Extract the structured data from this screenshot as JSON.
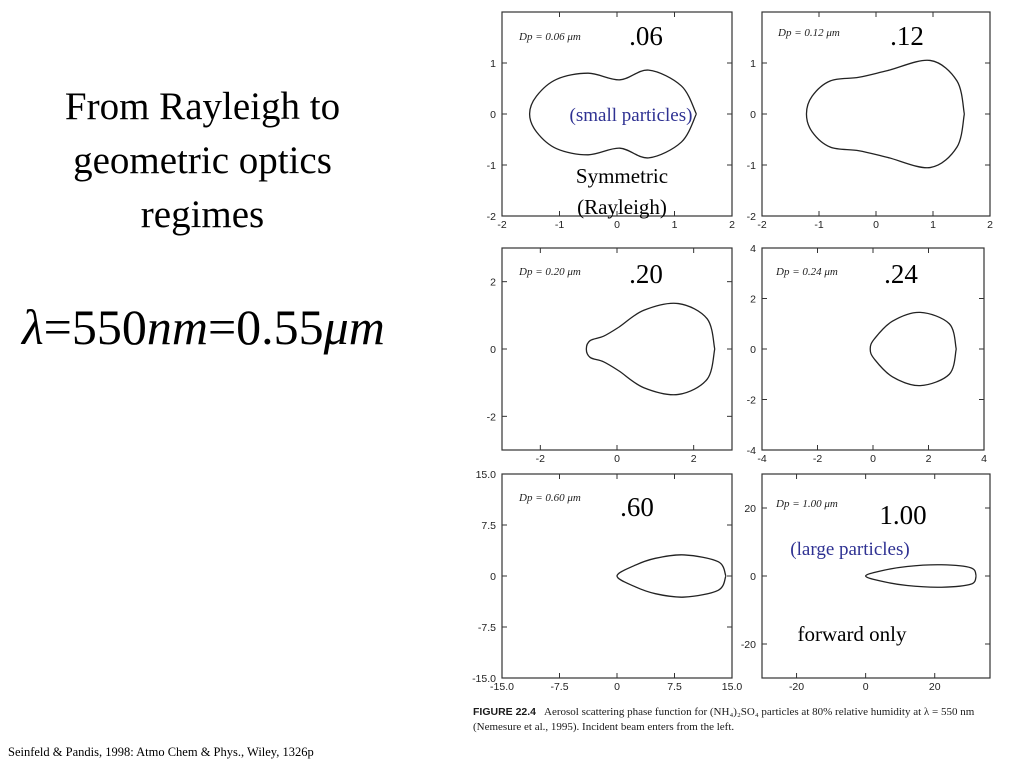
{
  "slide": {
    "title_lines": [
      "From Rayleigh to",
      "geometric optics",
      "regimes"
    ],
    "equation": {
      "lambda": "λ",
      "eq": "=",
      "val1": "550",
      "unit1": "nm",
      "val2": "0.55",
      "mu": "μ",
      "unit2": "m"
    },
    "citation": "Seinfeld & Pandis, 1998: Atmo Chem & Phys., Wiley, 1326p"
  },
  "caption": {
    "figure_label": "FIGURE 22.4",
    "text": "Aerosol scattering phase function for (NH₄)₂SO₄ particles at 80% relative humidity at λ = 550 nm (Nemesure et al., 1995). Incident beam enters from the left."
  },
  "colors": {
    "annotation_blue": "#2e3192",
    "plot_line": "#222222"
  },
  "chart_data": [
    {
      "type": "line",
      "panel_label": "Dp = 0.06 μm",
      "size_label": ".06",
      "annotations": [
        "(small particles)",
        "Symmetric",
        "(Rayleigh)"
      ],
      "xlim": [
        -2,
        2
      ],
      "ylim": [
        -2,
        2
      ],
      "xticks": [
        "-2",
        "-1",
        "0",
        "1",
        "2"
      ],
      "yticks": [
        "-2",
        "-1",
        "0",
        "1"
      ],
      "x": [
        1.38,
        1.12,
        0.55,
        0.05,
        -0.5,
        -1.05,
        -1.4,
        -1.52,
        -1.4,
        -1.05,
        -0.5,
        0.05,
        0.55,
        1.12,
        1.38
      ],
      "y": [
        0,
        0.55,
        0.86,
        0.67,
        0.8,
        0.68,
        0.35,
        0,
        -0.35,
        -0.68,
        -0.8,
        -0.67,
        -0.86,
        -0.55,
        0
      ]
    },
    {
      "type": "line",
      "panel_label": "Dp = 0.12 μm",
      "size_label": ".12",
      "annotations": [],
      "xlim": [
        -2,
        2
      ],
      "ylim": [
        -2,
        2
      ],
      "xticks": [
        "-2",
        "-1",
        "0",
        "1",
        "2"
      ],
      "yticks": [
        "-2",
        "-1",
        "0",
        "1"
      ],
      "x": [
        1.55,
        1.42,
        0.95,
        0.2,
        -0.3,
        -0.8,
        -1.12,
        -1.22,
        -1.12,
        -0.8,
        -0.3,
        0.2,
        0.95,
        1.42,
        1.55
      ],
      "y": [
        0,
        0.65,
        1.05,
        0.85,
        0.72,
        0.65,
        0.35,
        0,
        -0.35,
        -0.65,
        -0.72,
        -0.85,
        -1.05,
        -0.65,
        0
      ]
    },
    {
      "type": "line",
      "panel_label": "Dp = 0.20 μm",
      "size_label": ".20",
      "annotations": [],
      "xlim": [
        -3,
        3
      ],
      "ylim": [
        -3,
        3
      ],
      "xticks": [
        "-2",
        "0",
        "2"
      ],
      "yticks": [
        "-2",
        "0",
        "2"
      ],
      "x": [
        2.55,
        2.35,
        1.6,
        0.7,
        0.05,
        -0.35,
        -0.7,
        -0.8,
        -0.7,
        -0.35,
        0.05,
        0.7,
        1.6,
        2.35,
        2.55
      ],
      "y": [
        0,
        0.9,
        1.35,
        1.15,
        0.65,
        0.38,
        0.25,
        0,
        -0.25,
        -0.38,
        -0.65,
        -1.15,
        -1.35,
        -0.9,
        0
      ]
    },
    {
      "type": "line",
      "panel_label": "Dp = 0.24 μm",
      "size_label": ".24",
      "annotations": [],
      "xlim": [
        -4,
        4
      ],
      "ylim": [
        -4,
        4
      ],
      "xticks": [
        "-4",
        "-2",
        "0",
        "2",
        "4"
      ],
      "yticks": [
        "-4",
        "-2",
        "0",
        "2",
        "4"
      ],
      "x": [
        3.0,
        2.75,
        1.7,
        0.7,
        0.05,
        -0.1,
        0.05,
        0.7,
        1.7,
        2.75,
        3.0
      ],
      "y": [
        0,
        1.0,
        1.45,
        1.1,
        0.4,
        0,
        -0.4,
        -1.1,
        -1.45,
        -1.0,
        0
      ]
    },
    {
      "type": "line",
      "panel_label": "Dp = 0.60 μm",
      "size_label": ".60",
      "annotations": [],
      "xlim": [
        -15,
        15
      ],
      "ylim": [
        -15,
        15
      ],
      "xticks": [
        "-15.0",
        "-7.5",
        "0",
        "7.5",
        "15.0"
      ],
      "yticks": [
        "-15.0",
        "-7.5",
        "0",
        "7.5",
        "15.0"
      ],
      "x": [
        14.2,
        13.2,
        8.8,
        5.0,
        2.2,
        0,
        2.2,
        5.0,
        8.8,
        13.2,
        14.2
      ],
      "y": [
        0,
        2.1,
        3.1,
        2.6,
        1.5,
        0,
        -1.5,
        -2.6,
        -3.1,
        -2.1,
        0
      ]
    },
    {
      "type": "line",
      "panel_label": "Dp = 1.00 μm",
      "size_label": "1.00",
      "annotations": [
        "(large particles)",
        "forward only"
      ],
      "xlim": [
        -30,
        36
      ],
      "ylim": [
        -30,
        30
      ],
      "xticks": [
        "-20",
        "0",
        "20"
      ],
      "yticks": [
        "-20",
        "0",
        "20"
      ],
      "x": [
        32,
        30.5,
        22,
        12,
        4,
        0,
        4,
        12,
        22,
        30.5,
        32
      ],
      "y": [
        0,
        2.4,
        3.3,
        2.8,
        1.4,
        0,
        -1.4,
        -2.8,
        -3.3,
        -2.4,
        0
      ]
    }
  ]
}
